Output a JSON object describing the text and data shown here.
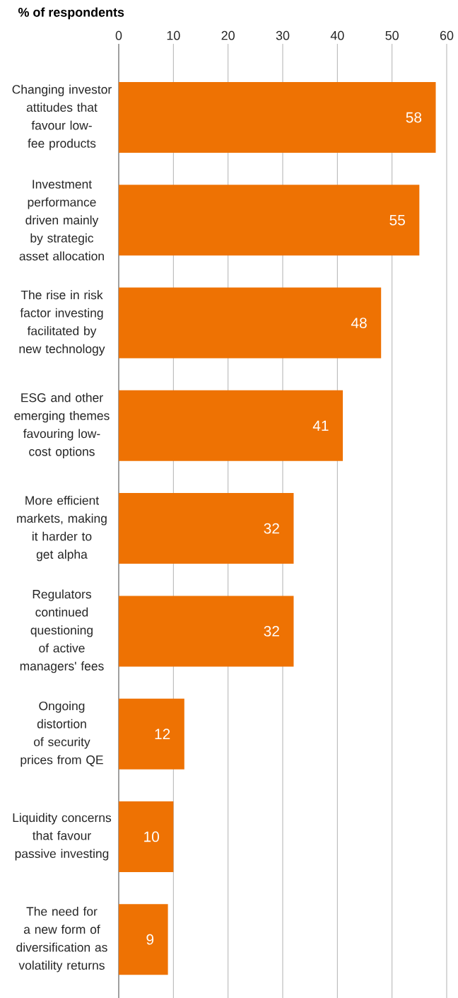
{
  "chart_data": {
    "type": "bar",
    "orientation": "horizontal",
    "title": "% of respondents",
    "categories": [
      "Changing investor attitudes that favour low-fee products",
      "Investment performance driven mainly by strategic asset allocation",
      "The rise in risk factor investing facilitated by new technology",
      "ESG and other emerging themes favouring low-cost options",
      "More efficient markets, making it harder to get alpha",
      "Regulators continued questioning of active managers' fees",
      "Ongoing distortion of security prices from QE",
      "Liquidity concerns that favour passive investing",
      "The need for a new form of diversification as volatility returns"
    ],
    "values": [
      58,
      55,
      48,
      41,
      32,
      32,
      12,
      10,
      9
    ],
    "color": "#ee7203",
    "xlim": [
      0,
      60
    ],
    "xticks": [
      0,
      10,
      20,
      30,
      40,
      50,
      60
    ],
    "grid": "x",
    "data_labels": true
  }
}
